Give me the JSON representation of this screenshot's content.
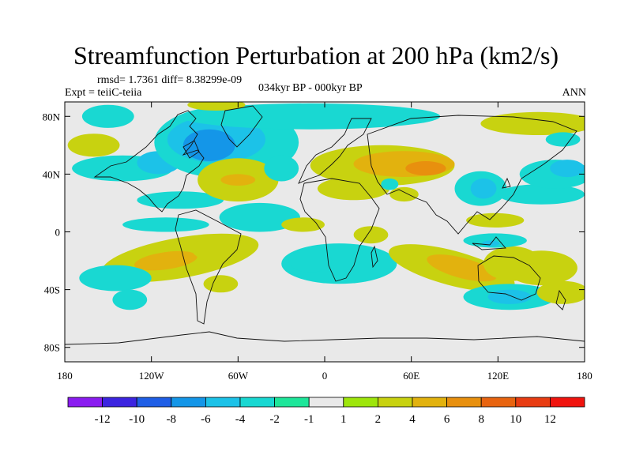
{
  "chart_data": {
    "type": "heatmap",
    "title": "Streamfunction Perturbation at 200 hPa (km2/s)",
    "stats": "rmsd= 1.7361 diff= 8.38299e-09",
    "experiment": "Expt = teiiC-teiia",
    "period": "034kyr BP - 000kyr BP",
    "season": "ANN",
    "x_axis": {
      "range": [
        -180,
        180
      ],
      "ticks": [
        {
          "value": -180,
          "label": "180"
        },
        {
          "value": -120,
          "label": "120W"
        },
        {
          "value": -60,
          "label": "60W"
        },
        {
          "value": 0,
          "label": "0"
        },
        {
          "value": 60,
          "label": "60E"
        },
        {
          "value": 120,
          "label": "120E"
        },
        {
          "value": 180,
          "label": "180"
        }
      ]
    },
    "y_axis": {
      "range": [
        -90,
        90
      ],
      "ticks": [
        {
          "value": 80,
          "label": "80N"
        },
        {
          "value": 40,
          "label": "40N"
        },
        {
          "value": 0,
          "label": "0"
        },
        {
          "value": -40,
          "label": "40S"
        },
        {
          "value": -80,
          "label": "80S"
        }
      ]
    },
    "colorbar": {
      "levels": [
        "-12",
        "-10",
        "-8",
        "-6",
        "-4",
        "-2",
        "-1",
        "1",
        "2",
        "4",
        "6",
        "8",
        "10",
        "12"
      ],
      "colors": [
        "#8a1cf0",
        "#3c24e0",
        "#1f5ee6",
        "#1496e8",
        "#1cc2e8",
        "#19d8d2",
        "#1ee69a",
        "#e9e9e9",
        "#9ee60c",
        "#c8d210",
        "#e2b20e",
        "#e8900e",
        "#e86410",
        "#e83c12",
        "#f0140e"
      ]
    },
    "background_color": "#e9e9e9",
    "regions": [
      {
        "lon": -150,
        "lat": 80,
        "rx": 18,
        "ry": 8,
        "rot": 0,
        "level": "-2"
      },
      {
        "lon": -160,
        "lat": 60,
        "rx": 18,
        "ry": 8,
        "rot": 0,
        "level": "2"
      },
      {
        "lon": -140,
        "lat": 44,
        "rx": 35,
        "ry": 9,
        "rot": 0,
        "level": "-2"
      },
      {
        "lon": -115,
        "lat": 48,
        "rx": 15,
        "ry": 8,
        "rot": 0,
        "level": "-4"
      },
      {
        "lon": -68,
        "lat": 62,
        "rx": 50,
        "ry": 25,
        "rot": 0,
        "level": "-2"
      },
      {
        "lon": -75,
        "lat": 64,
        "rx": 34,
        "ry": 16,
        "rot": 0,
        "level": "-4"
      },
      {
        "lon": -80,
        "lat": 60,
        "rx": 18,
        "ry": 11,
        "rot": 0,
        "level": "-6"
      },
      {
        "lon": -10,
        "lat": 80,
        "rx": 90,
        "ry": 9,
        "rot": 0,
        "level": "-2"
      },
      {
        "lon": -75,
        "lat": 88,
        "rx": 20,
        "ry": 4,
        "rot": 0,
        "level": "2"
      },
      {
        "lon": -100,
        "lat": 22,
        "rx": 30,
        "ry": 6,
        "rot": 0,
        "level": "-2"
      },
      {
        "lon": -60,
        "lat": 36,
        "rx": 28,
        "ry": 15,
        "rot": 0,
        "level": "2"
      },
      {
        "lon": -60,
        "lat": 36,
        "rx": 12,
        "ry": 4,
        "rot": 0,
        "level": "4"
      },
      {
        "lon": -30,
        "lat": 44,
        "rx": 12,
        "ry": 9,
        "rot": 0,
        "level": "-2"
      },
      {
        "lon": -110,
        "lat": 5,
        "rx": 30,
        "ry": 5,
        "rot": 0,
        "level": "-2"
      },
      {
        "lon": -45,
        "lat": 10,
        "rx": 28,
        "ry": 10,
        "rot": 0,
        "level": "-2"
      },
      {
        "lon": -15,
        "lat": 5,
        "rx": 15,
        "ry": 5,
        "rot": 0,
        "level": "2"
      },
      {
        "lon": -100,
        "lat": -18,
        "rx": 55,
        "ry": 14,
        "rot": -10,
        "level": "2"
      },
      {
        "lon": -110,
        "lat": -20,
        "rx": 22,
        "ry": 6,
        "rot": -8,
        "level": "4"
      },
      {
        "lon": -72,
        "lat": -12,
        "rx": 20,
        "ry": 9,
        "rot": 0,
        "level": "2"
      },
      {
        "lon": -145,
        "lat": -32,
        "rx": 25,
        "ry": 9,
        "rot": 0,
        "level": "-2"
      },
      {
        "lon": -135,
        "lat": -47,
        "rx": 12,
        "ry": 7,
        "rot": 0,
        "level": "-2"
      },
      {
        "lon": -72,
        "lat": -36,
        "rx": 12,
        "ry": 6,
        "rot": 0,
        "level": "2"
      },
      {
        "lon": 40,
        "lat": 46,
        "rx": 50,
        "ry": 14,
        "rot": 0,
        "level": "2"
      },
      {
        "lon": 55,
        "lat": 47,
        "rx": 35,
        "ry": 9,
        "rot": 0,
        "level": "4"
      },
      {
        "lon": 70,
        "lat": 44,
        "rx": 14,
        "ry": 5,
        "rot": 0,
        "level": "6"
      },
      {
        "lon": 20,
        "lat": 30,
        "rx": 25,
        "ry": 8,
        "rot": 0,
        "level": "2"
      },
      {
        "lon": 55,
        "lat": 26,
        "rx": 10,
        "ry": 5,
        "rot": 0,
        "level": "2"
      },
      {
        "lon": 45,
        "lat": 33,
        "rx": 6,
        "ry": 4,
        "rot": 0,
        "level": "-2"
      },
      {
        "lon": 108,
        "lat": 30,
        "rx": 18,
        "ry": 12,
        "rot": 0,
        "level": "-2"
      },
      {
        "lon": 110,
        "lat": 30,
        "rx": 9,
        "ry": 7,
        "rot": 0,
        "level": "-4"
      },
      {
        "lon": 150,
        "lat": 26,
        "rx": 30,
        "ry": 7,
        "rot": 0,
        "level": "-2"
      },
      {
        "lon": 160,
        "lat": 40,
        "rx": 25,
        "ry": 10,
        "rot": 0,
        "level": "-2"
      },
      {
        "lon": 168,
        "lat": 44,
        "rx": 12,
        "ry": 6,
        "rot": 0,
        "level": "-4"
      },
      {
        "lon": 148,
        "lat": 75,
        "rx": 40,
        "ry": 8,
        "rot": 0,
        "level": "2"
      },
      {
        "lon": 165,
        "lat": 64,
        "rx": 12,
        "ry": 5,
        "rot": 0,
        "level": "-2"
      },
      {
        "lon": 10,
        "lat": -22,
        "rx": 40,
        "ry": 14,
        "rot": 0,
        "level": "-2"
      },
      {
        "lon": -10,
        "lat": -20,
        "rx": 15,
        "ry": 8,
        "rot": 0,
        "level": "-2"
      },
      {
        "lon": 32,
        "lat": -2,
        "rx": 12,
        "ry": 6,
        "rot": 0,
        "level": "2"
      },
      {
        "lon": 88,
        "lat": -25,
        "rx": 45,
        "ry": 12,
        "rot": 15,
        "level": "2"
      },
      {
        "lon": 95,
        "lat": -25,
        "rx": 25,
        "ry": 7,
        "rot": 15,
        "level": "4"
      },
      {
        "lon": 130,
        "lat": -22,
        "rx": 20,
        "ry": 12,
        "rot": 0,
        "level": "2"
      },
      {
        "lon": 150,
        "lat": -25,
        "rx": 25,
        "ry": 12,
        "rot": 0,
        "level": "2"
      },
      {
        "lon": 118,
        "lat": -6,
        "rx": 22,
        "ry": 5,
        "rot": 0,
        "level": "-2"
      },
      {
        "lon": 115,
        "lat": -8,
        "rx": 6,
        "ry": 2,
        "rot": 0,
        "level": "-4"
      },
      {
        "lon": 128,
        "lat": -45,
        "rx": 32,
        "ry": 9,
        "rot": 0,
        "level": "-2"
      },
      {
        "lon": 128,
        "lat": -45,
        "rx": 15,
        "ry": 5,
        "rot": 0,
        "level": "-4"
      },
      {
        "lon": 165,
        "lat": -42,
        "rx": 18,
        "ry": 8,
        "rot": 0,
        "level": "2"
      },
      {
        "lon": 118,
        "lat": 8,
        "rx": 20,
        "ry": 5,
        "rot": 0,
        "level": "2"
      }
    ]
  }
}
